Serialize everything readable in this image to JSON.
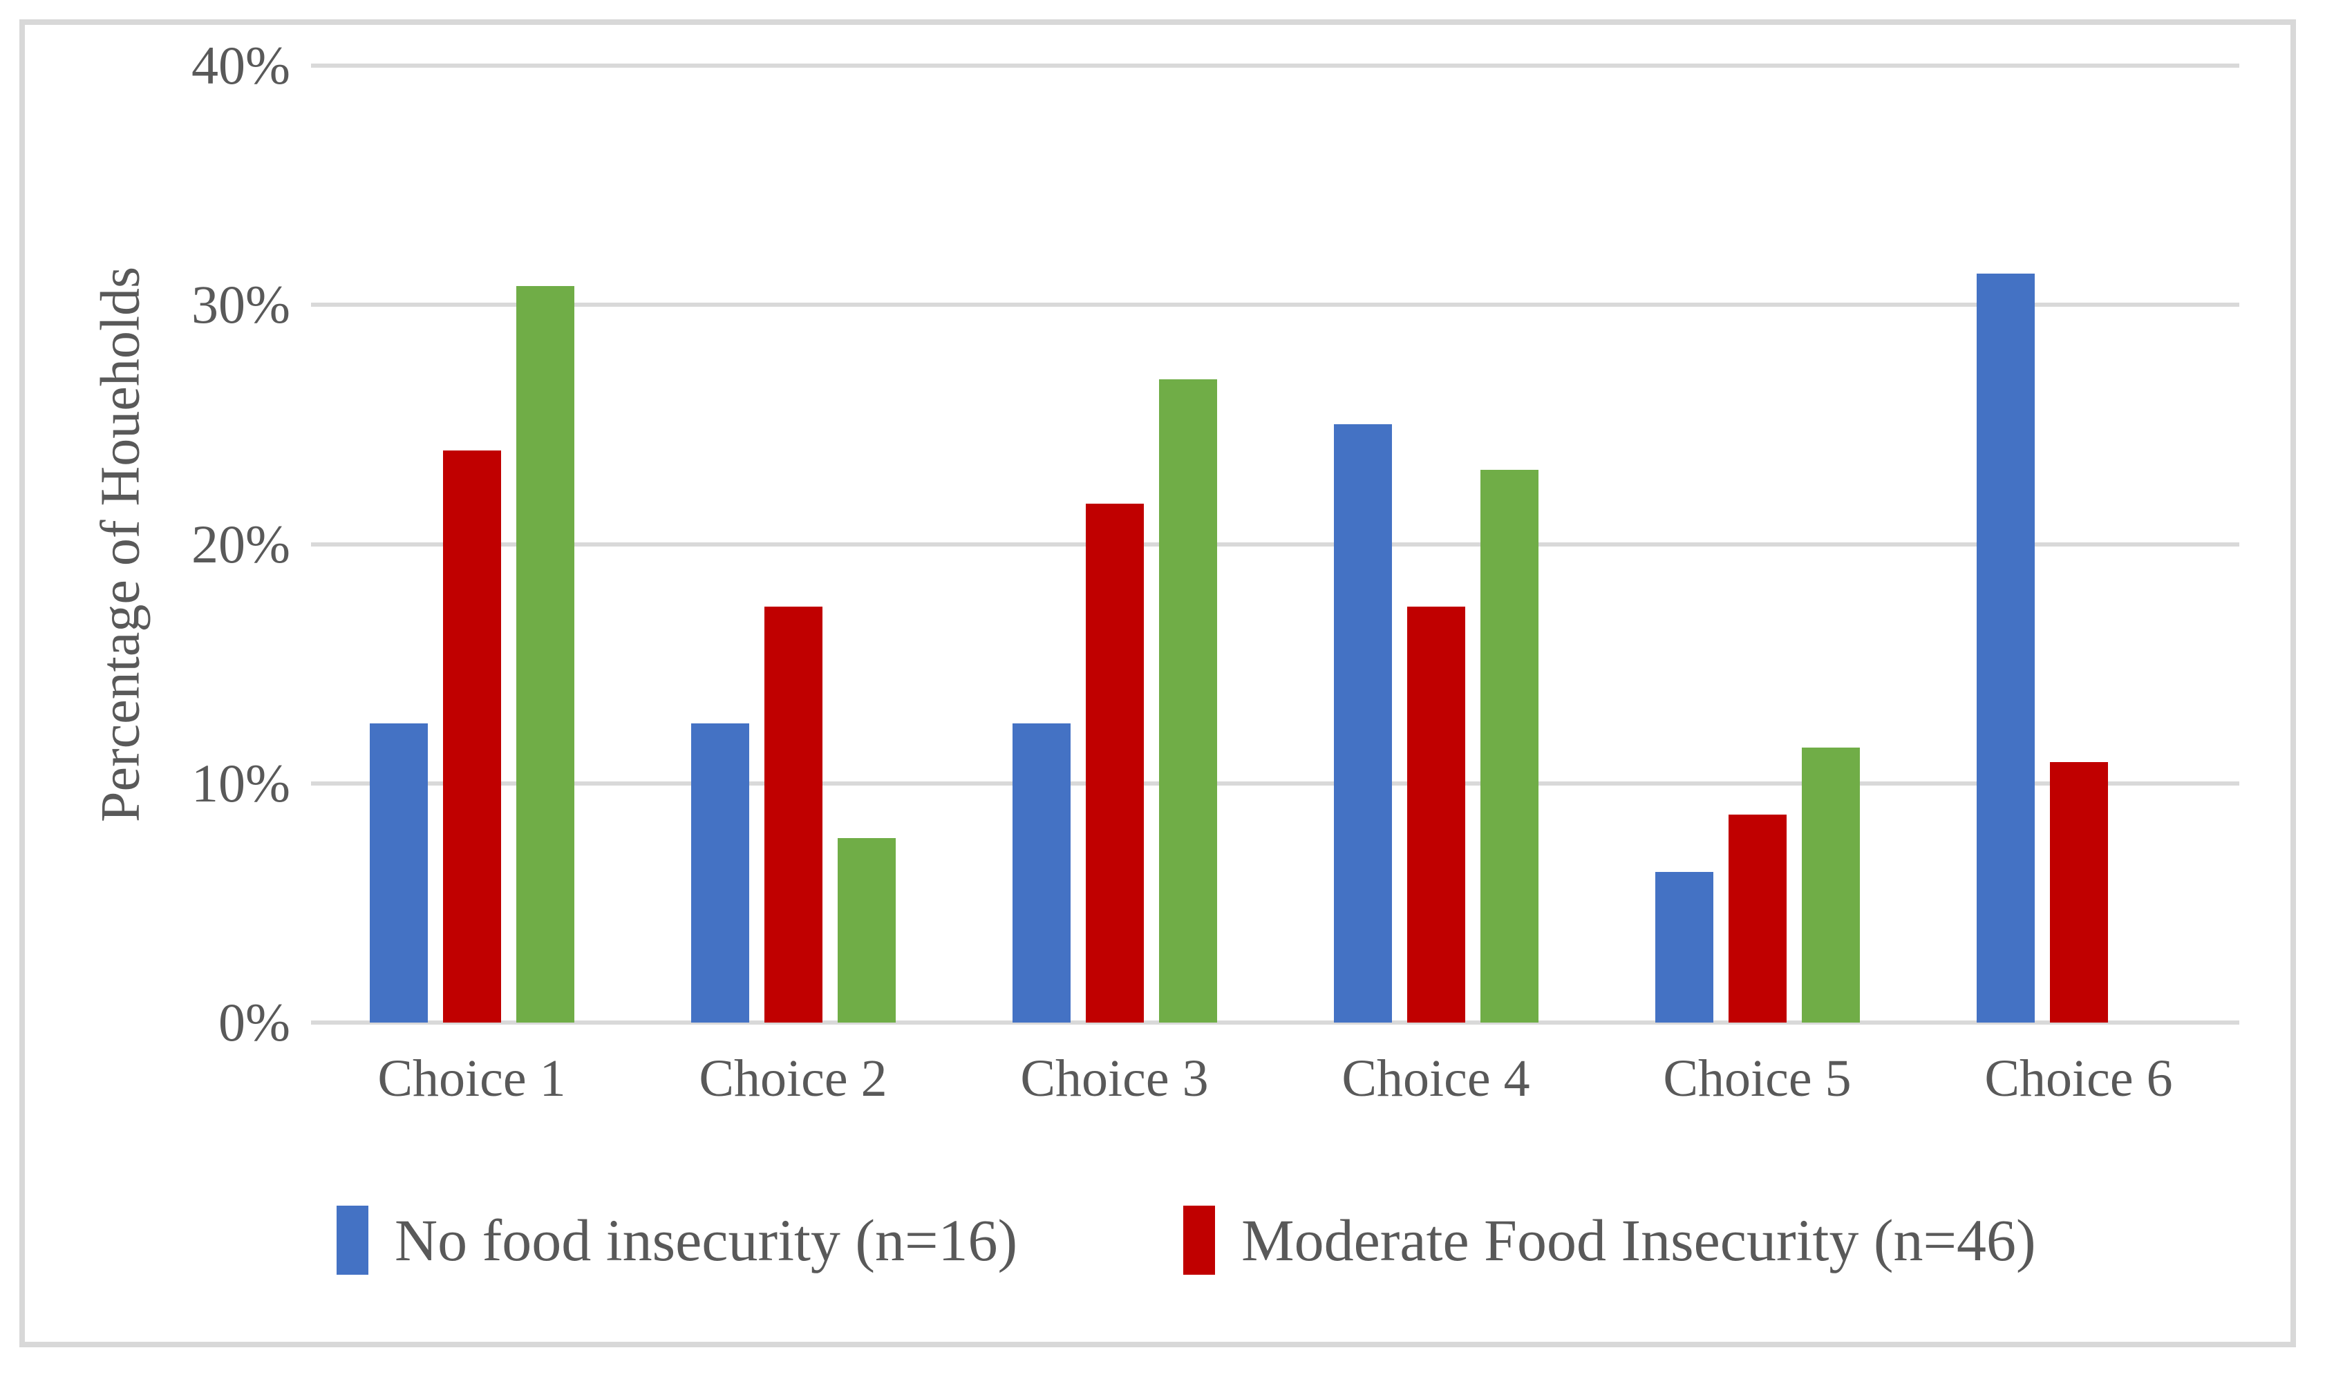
{
  "figure": {
    "background_color": "#FFFFFF",
    "frame_border_color": "#D8D8D8",
    "gridline_color": "#D9D9D9",
    "text_color": "#595959"
  },
  "chart_data": {
    "type": "bar",
    "title": "",
    "categories": [
      "Choice 1",
      "Choice 2",
      "Choice 3",
      "Choice 4",
      "Choice 5",
      "Choice 6"
    ],
    "series": [
      {
        "name": "No food insecurity (n=16)",
        "color": "#4472C4",
        "values": [
          12.5,
          12.5,
          12.5,
          25.0,
          6.3,
          31.3
        ]
      },
      {
        "name": "Moderate Food Insecurity (n=46)",
        "color": "#C00000",
        "values": [
          23.9,
          17.4,
          21.7,
          17.4,
          8.7,
          10.9
        ]
      },
      {
        "name": "",
        "color": "#70AD47",
        "values": [
          30.8,
          7.7,
          26.9,
          23.1,
          11.5,
          0
        ]
      }
    ],
    "xlabel": "",
    "ylabel": "Percentage of Houeholds",
    "yticks": [
      "0%",
      "10%",
      "20%",
      "30%",
      "40%"
    ],
    "ylim": [
      0,
      40
    ],
    "value_unit": "%",
    "grid": true,
    "legend_position": "bottom"
  },
  "legend": {
    "entries": [
      {
        "label": "No food insecurity (n=16)",
        "color": "#4472C4"
      },
      {
        "label": "Moderate Food Insecurity (n=46)",
        "color": "#C00000"
      }
    ]
  }
}
